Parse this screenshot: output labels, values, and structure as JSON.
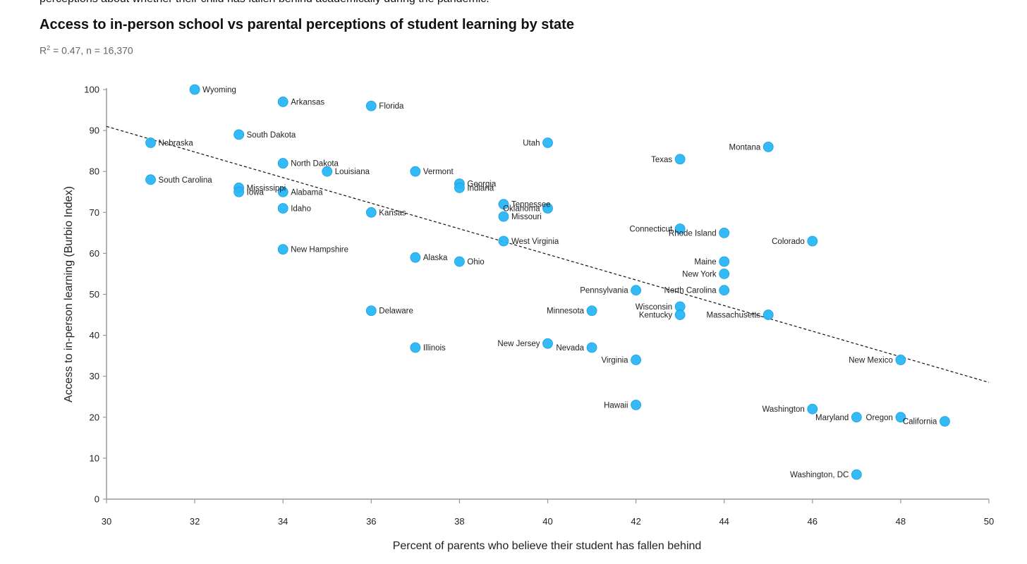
{
  "intro_text": "perceptions about whether their child has fallen behind academically during the pandemic.",
  "chart_data": {
    "type": "scatter",
    "title": "Access to in-person school vs parental perceptions of student learning by state",
    "subtitle_r_prefix": "R",
    "subtitle_r_exp": "2",
    "subtitle_rest": " = 0.47, n = 16,370",
    "xlabel": "Percent of parents who believe their student has fallen behind",
    "ylabel": "Access to in-person learning (Burbio Index)",
    "xlim": [
      30,
      50
    ],
    "ylim": [
      0,
      100
    ],
    "xticks": [
      30,
      32,
      34,
      36,
      38,
      40,
      42,
      44,
      46,
      48,
      50
    ],
    "yticks": [
      0,
      10,
      20,
      30,
      40,
      50,
      60,
      70,
      80,
      90,
      100
    ],
    "grid": false,
    "point_color": "#29b6f6",
    "trendline": {
      "style": "dashed",
      "x": [
        30,
        50
      ],
      "y": [
        91,
        28.5
      ]
    },
    "points": [
      {
        "label": "Wyoming",
        "x": 32,
        "y": 100,
        "side": "right"
      },
      {
        "label": "Arkansas",
        "x": 34,
        "y": 97,
        "side": "right"
      },
      {
        "label": "Florida",
        "x": 36,
        "y": 96,
        "side": "right"
      },
      {
        "label": "South Dakota",
        "x": 33,
        "y": 89,
        "side": "right"
      },
      {
        "label": "Nebraska",
        "x": 31,
        "y": 87,
        "side": "right"
      },
      {
        "label": "North Dakota",
        "x": 34,
        "y": 82,
        "side": "right"
      },
      {
        "label": "Louisiana",
        "x": 35,
        "y": 80,
        "side": "right"
      },
      {
        "label": "Vermont",
        "x": 37,
        "y": 80,
        "side": "right"
      },
      {
        "label": "South Carolina",
        "x": 31,
        "y": 78,
        "side": "right"
      },
      {
        "label": "Georgia",
        "x": 38,
        "y": 77,
        "side": "right"
      },
      {
        "label": "Indiana",
        "x": 38,
        "y": 76,
        "side": "right"
      },
      {
        "label": "Mississippi",
        "x": 33,
        "y": 76,
        "side": "right"
      },
      {
        "label": "Iowa",
        "x": 33,
        "y": 75,
        "side": "right"
      },
      {
        "label": "Alabama",
        "x": 34,
        "y": 75,
        "side": "right"
      },
      {
        "label": "Idaho",
        "x": 34,
        "y": 71,
        "side": "right"
      },
      {
        "label": "Kansas",
        "x": 36,
        "y": 70,
        "side": "right"
      },
      {
        "label": "Tennessee",
        "x": 39,
        "y": 72,
        "side": "right"
      },
      {
        "label": "Oklahoma",
        "x": 40,
        "y": 71,
        "side": "left"
      },
      {
        "label": "Missouri",
        "x": 39,
        "y": 69,
        "side": "right"
      },
      {
        "label": "Utah",
        "x": 40,
        "y": 87,
        "side": "left"
      },
      {
        "label": "West Virginia",
        "x": 39,
        "y": 63,
        "side": "right"
      },
      {
        "label": "New Hampshire",
        "x": 34,
        "y": 61,
        "side": "right"
      },
      {
        "label": "Alaska",
        "x": 37,
        "y": 59,
        "side": "right"
      },
      {
        "label": "Ohio",
        "x": 38,
        "y": 58,
        "side": "right"
      },
      {
        "label": "Delaware",
        "x": 36,
        "y": 46,
        "side": "right"
      },
      {
        "label": "Illinois",
        "x": 37,
        "y": 37,
        "side": "right"
      },
      {
        "label": "New Jersey",
        "x": 40,
        "y": 38,
        "side": "left"
      },
      {
        "label": "Nevada",
        "x": 41,
        "y": 37,
        "side": "left"
      },
      {
        "label": "Minnesota",
        "x": 41,
        "y": 46,
        "side": "left"
      },
      {
        "label": "Pennsylvania",
        "x": 42,
        "y": 51,
        "side": "left"
      },
      {
        "label": "Virginia",
        "x": 42,
        "y": 34,
        "side": "left"
      },
      {
        "label": "Hawaii",
        "x": 42,
        "y": 23,
        "side": "left"
      },
      {
        "label": "Texas",
        "x": 43,
        "y": 83,
        "side": "left"
      },
      {
        "label": "Connecticut",
        "x": 43,
        "y": 66,
        "side": "left"
      },
      {
        "label": "Rhode Island",
        "x": 44,
        "y": 65,
        "side": "left"
      },
      {
        "label": "Maine",
        "x": 44,
        "y": 58,
        "side": "left"
      },
      {
        "label": "New York",
        "x": 44,
        "y": 55,
        "side": "left"
      },
      {
        "label": "North Carolina",
        "x": 44,
        "y": 51,
        "side": "left"
      },
      {
        "label": "Wisconsin",
        "x": 43,
        "y": 47,
        "side": "left"
      },
      {
        "label": "Kentucky",
        "x": 43,
        "y": 45,
        "side": "left"
      },
      {
        "label": "Massachusetts",
        "x": 45,
        "y": 45,
        "side": "left"
      },
      {
        "label": "Montana",
        "x": 45,
        "y": 86,
        "side": "left"
      },
      {
        "label": "Colorado",
        "x": 46,
        "y": 63,
        "side": "left"
      },
      {
        "label": "New Mexico",
        "x": 48,
        "y": 34,
        "side": "left"
      },
      {
        "label": "Washington",
        "x": 46,
        "y": 22,
        "side": "left"
      },
      {
        "label": "Maryland",
        "x": 47,
        "y": 20,
        "side": "left"
      },
      {
        "label": "Oregon",
        "x": 48,
        "y": 20,
        "side": "left"
      },
      {
        "label": "California",
        "x": 49,
        "y": 19,
        "side": "left"
      },
      {
        "label": "Washington, DC",
        "x": 47,
        "y": 6,
        "side": "left"
      }
    ]
  }
}
